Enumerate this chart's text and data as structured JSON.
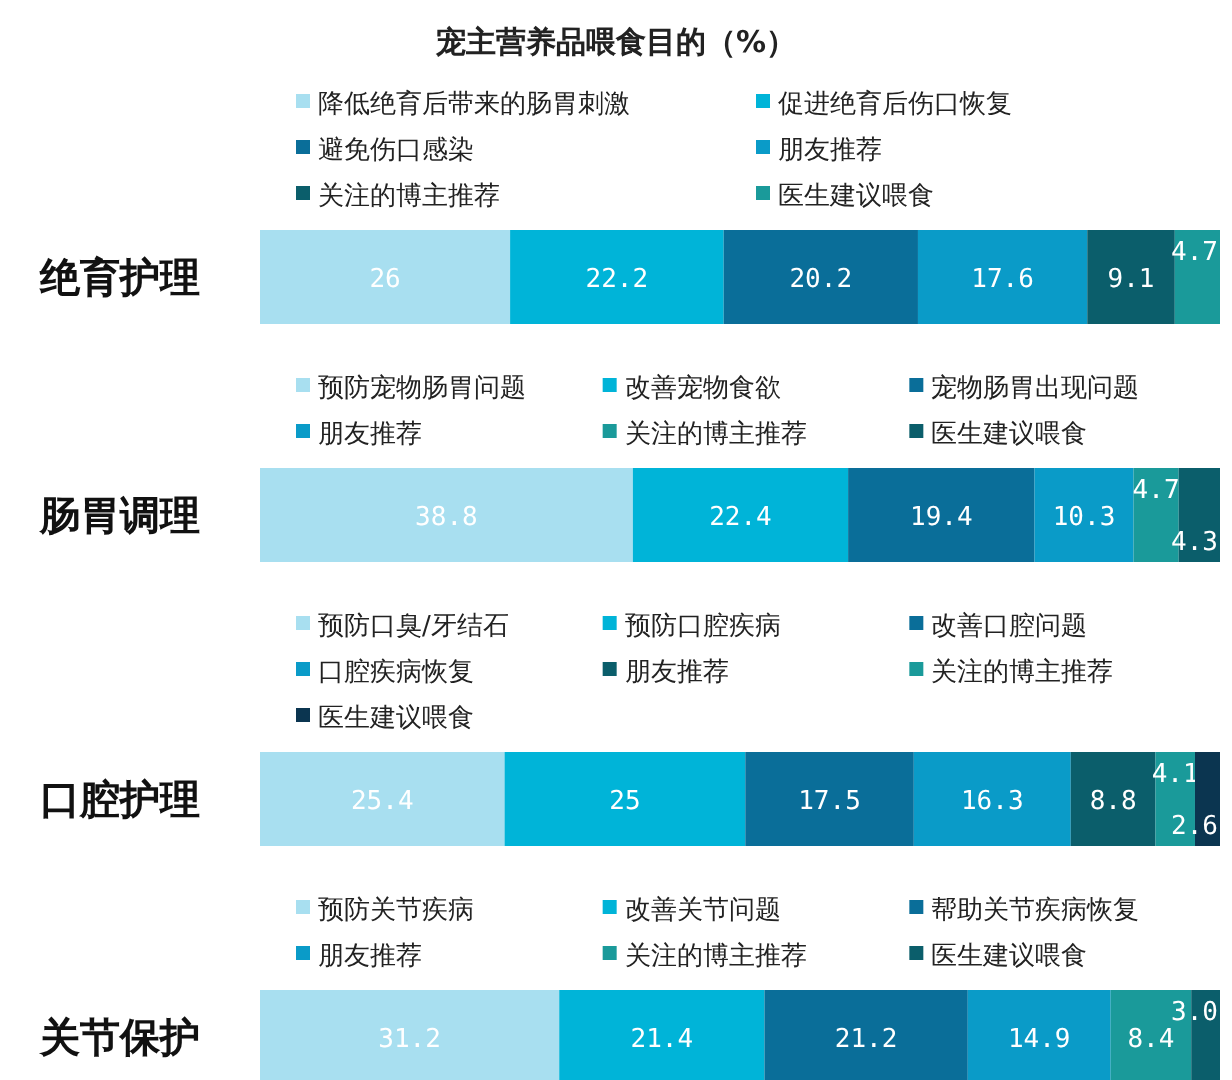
{
  "chart_data": [
    {
      "type": "bar",
      "title": "宠主营养品喂食目的（%）",
      "orientation": "horizontal",
      "stacked": true,
      "data_labels": true,
      "legend": "top",
      "categories": [
        "绝育护理"
      ],
      "series": [
        {
          "name": "降低绝育后带来的肠胃刺激",
          "color": "#a8dff0",
          "values": [
            26
          ]
        },
        {
          "name": "促进绝育后伤口恢复",
          "color": "#00b4d8",
          "values": [
            22.2
          ]
        },
        {
          "name": "避免伤口感染",
          "color": "#0a6e99",
          "values": [
            20.2
          ]
        },
        {
          "name": "朋友推荐",
          "color": "#0a9bc8",
          "values": [
            17.6
          ]
        },
        {
          "name": "关注的博主推荐",
          "color": "#0b5e6b",
          "values": [
            9.1
          ]
        },
        {
          "name": "医生建议喂食",
          "color": "#1a9a9a",
          "values": [
            4.7
          ]
        }
      ]
    },
    {
      "type": "bar",
      "orientation": "horizontal",
      "stacked": true,
      "data_labels": true,
      "legend": "top",
      "categories": [
        "肠胃调理"
      ],
      "series": [
        {
          "name": "预防宠物肠胃问题",
          "color": "#a8dff0",
          "values": [
            38.8
          ]
        },
        {
          "name": "改善宠物食欲",
          "color": "#00b4d8",
          "values": [
            22.4
          ]
        },
        {
          "name": "宠物肠胃出现问题",
          "color": "#0a6e99",
          "values": [
            19.4
          ]
        },
        {
          "name": "朋友推荐",
          "color": "#0a9bc8",
          "values": [
            10.3
          ]
        },
        {
          "name": "关注的博主推荐",
          "color": "#1a9a9a",
          "values": [
            4.7
          ]
        },
        {
          "name": "医生建议喂食",
          "color": "#0b5e6b",
          "values": [
            4.3
          ]
        }
      ]
    },
    {
      "type": "bar",
      "orientation": "horizontal",
      "stacked": true,
      "data_labels": true,
      "legend": "top",
      "categories": [
        "口腔护理"
      ],
      "series": [
        {
          "name": "预防口臭/牙结石",
          "color": "#a8dff0",
          "values": [
            25.4
          ]
        },
        {
          "name": "预防口腔疾病",
          "color": "#00b4d8",
          "values": [
            25
          ]
        },
        {
          "name": "改善口腔问题",
          "color": "#0a6e99",
          "values": [
            17.5
          ]
        },
        {
          "name": "口腔疾病恢复",
          "color": "#0a9bc8",
          "values": [
            16.3
          ]
        },
        {
          "name": "朋友推荐",
          "color": "#0b5e6b",
          "values": [
            8.8
          ]
        },
        {
          "name": "关注的博主推荐",
          "color": "#1a9a9a",
          "values": [
            4.1
          ]
        },
        {
          "name": "医生建议喂食",
          "color": "#0b3550",
          "values": [
            2.6
          ]
        }
      ]
    },
    {
      "type": "bar",
      "orientation": "horizontal",
      "stacked": true,
      "data_labels": true,
      "legend": "top",
      "categories": [
        "关节保护"
      ],
      "series": [
        {
          "name": "预防关节疾病",
          "color": "#a8dff0",
          "values": [
            31.2
          ]
        },
        {
          "name": "改善关节问题",
          "color": "#00b4d8",
          "values": [
            21.4
          ]
        },
        {
          "name": "帮助关节疾病恢复",
          "color": "#0a6e99",
          "values": [
            21.2
          ]
        },
        {
          "name": "朋友推荐",
          "color": "#0a9bc8",
          "values": [
            14.9
          ]
        },
        {
          "name": "关注的博主推荐",
          "color": "#1a9a9a",
          "values": [
            8.4
          ]
        },
        {
          "name": "医生建议喂食",
          "color": "#0b5e6b",
          "values": [
            3.0
          ],
          "value_labels": [
            "3.0"
          ]
        }
      ]
    }
  ]
}
